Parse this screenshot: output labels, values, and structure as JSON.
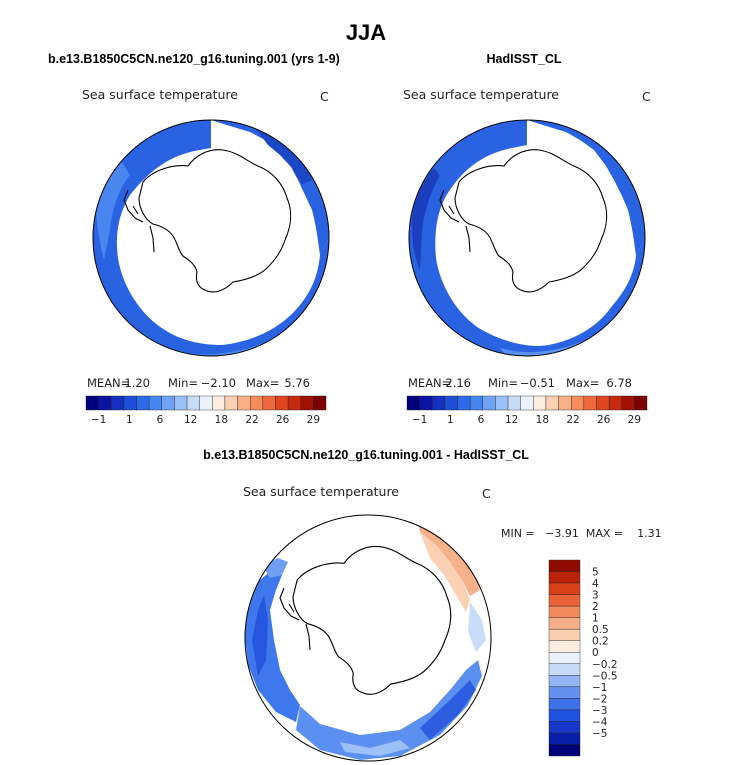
{
  "figure": {
    "title": "JJA",
    "panels": [
      {
        "id": "model",
        "header": "b.e13.B1850C5CN.ne120_g16.tuning.001 (yrs 1-9)",
        "variable": "Sea surface temperature",
        "units": "C",
        "stats": {
          "mean_label": "MEAN=",
          "mean": "1.20",
          "min_label": "Min=",
          "min": "−2.10",
          "max_label": "Max=",
          "max": "5.76"
        }
      },
      {
        "id": "obs",
        "header": "HadISST_CL",
        "variable": "Sea surface temperature",
        "units": "C",
        "stats": {
          "mean_label": "MEAN=",
          "mean": "2.16",
          "min_label": "Min=",
          "min": "−0.51",
          "max_label": "Max=",
          "max": "6.78"
        }
      },
      {
        "id": "diff",
        "header": "b.e13.B1850C5CN.ne120_g16.tuning.001 - HadISST_CL",
        "variable": "Sea surface temperature",
        "units": "C",
        "stats_text": "MIN =   −3.91  MAX =    1.31"
      }
    ],
    "colorbar_abs": {
      "colors": [
        "#00007a",
        "#0a14a0",
        "#1530c0",
        "#1f4fd8",
        "#2d6ae8",
        "#4686f0",
        "#6ea3f5",
        "#9cc0f8",
        "#c8dcf8",
        "#eaf2fb",
        "#fdeee2",
        "#fbd1b4",
        "#f8b187",
        "#f48d5c",
        "#ef6a3b",
        "#e0461e",
        "#c52a10",
        "#a11205",
        "#7b0000"
      ],
      "tick_labels": [
        "−1",
        "1",
        "6",
        "12",
        "18",
        "22",
        "26",
        "29"
      ]
    },
    "colorbar_diff": {
      "colors": [
        "#00007a",
        "#0a1fa8",
        "#1538c8",
        "#1f52de",
        "#3d71ea",
        "#6690f0",
        "#95b5f5",
        "#c5dbf8",
        "#eaf3fc",
        "#fdeee2",
        "#f8cfb0",
        "#f4ae86",
        "#f08a5c",
        "#ea6238",
        "#d8401a",
        "#bb220a",
        "#8f0b00"
      ],
      "tick_labels": [
        "5",
        "4",
        "3",
        "2",
        "1",
        "0.5",
        "0.2",
        "0",
        "−0.2",
        "−0.5",
        "−1",
        "−2",
        "−3",
        "−4",
        "−5"
      ]
    }
  },
  "chart_data": [
    {
      "type": "heatmap",
      "title": "b.e13.B1850C5CN.ne120_g16.tuning.001 (yrs 1-9)",
      "variable": "Sea surface temperature",
      "units": "C",
      "projection": "south polar stereographic",
      "mean": 1.2,
      "min": -2.1,
      "max": 5.76,
      "contour_levels": [
        -1,
        1,
        6,
        12,
        18,
        22,
        26,
        29
      ]
    },
    {
      "type": "heatmap",
      "title": "HadISST_CL",
      "variable": "Sea surface temperature",
      "units": "C",
      "projection": "south polar stereographic",
      "mean": 2.16,
      "min": -0.51,
      "max": 6.78,
      "contour_levels": [
        -1,
        1,
        6,
        12,
        18,
        22,
        26,
        29
      ]
    },
    {
      "type": "heatmap",
      "title": "b.e13.B1850C5CN.ne120_g16.tuning.001 - HadISST_CL",
      "variable": "Sea surface temperature",
      "units": "C",
      "projection": "south polar stereographic",
      "min": -3.91,
      "max": 1.31,
      "contour_levels": [
        5,
        4,
        3,
        2,
        1,
        0.5,
        0.2,
        0,
        -0.2,
        -0.5,
        -1,
        -2,
        -3,
        -4,
        -5
      ]
    }
  ]
}
